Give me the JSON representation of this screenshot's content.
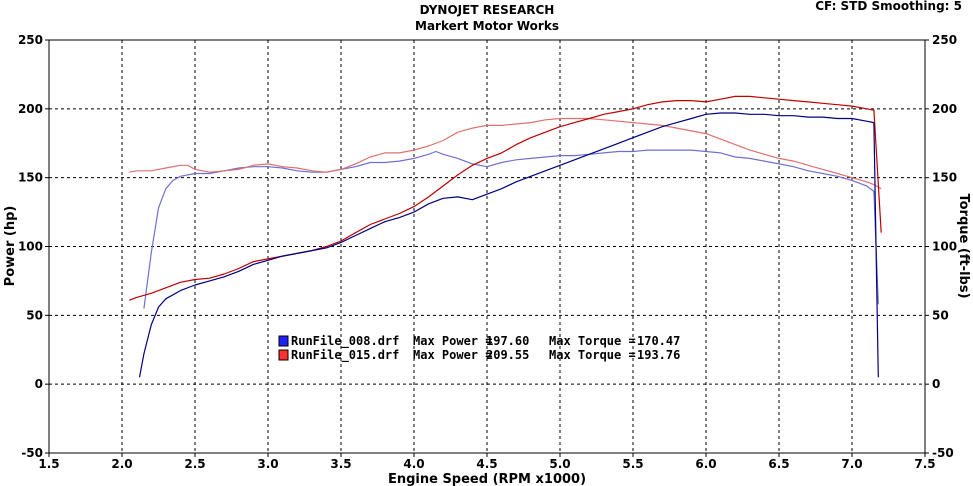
{
  "header": {
    "title": "DYNOJET RESEARCH",
    "subtitle": "Markert Motor Works",
    "settings": "CF: STD  Smoothing: 5"
  },
  "chart_data": {
    "type": "line",
    "xlabel": "Engine Speed (RPM x1000)",
    "ylabel_left": "Power (hp)",
    "ylabel_right": "Torque (ft-lbs)",
    "xlim": [
      1.5,
      7.5
    ],
    "ylim": [
      -50,
      250
    ],
    "x_ticks": [
      "1.5",
      "2.0",
      "2.5",
      "3.0",
      "3.5",
      "4.0",
      "4.5",
      "5.0",
      "5.5",
      "6.0",
      "6.5",
      "7.0",
      "7.5"
    ],
    "y_ticks_left": [
      "250",
      "200",
      "150",
      "100",
      "50",
      "0",
      "-50"
    ],
    "y_ticks_right": [
      "250",
      "200",
      "150",
      "100",
      "50",
      "0",
      "-50"
    ],
    "grid": true,
    "colors": {
      "run008": "#000080",
      "run015": "#c00000",
      "run008_tq": "#7070d0",
      "run015_tq": "#e07070"
    },
    "legend": {
      "placement": "center",
      "entries": [
        {
          "file": "RunFile_008.drf",
          "power_label": "Max Power =",
          "power": "197.60",
          "torque_label": "Max Torque =",
          "torque": "170.47",
          "color": "#2020ff"
        },
        {
          "file": "RunFile_015.drf",
          "power_label": "Max Power =",
          "power": "209.55",
          "torque_label": "Max Torque =",
          "torque": "193.76",
          "color": "#ff3030"
        }
      ]
    },
    "series": [
      {
        "key": "run008_power",
        "color": "#000080",
        "x": [
          2.12,
          2.15,
          2.2,
          2.25,
          2.3,
          2.4,
          2.5,
          2.6,
          2.7,
          2.8,
          2.9,
          3.0,
          3.1,
          3.2,
          3.3,
          3.4,
          3.5,
          3.6,
          3.7,
          3.8,
          3.9,
          4.0,
          4.1,
          4.2,
          4.3,
          4.4,
          4.5,
          4.6,
          4.7,
          4.8,
          4.9,
          5.0,
          5.1,
          5.2,
          5.3,
          5.4,
          5.5,
          5.6,
          5.7,
          5.8,
          5.9,
          6.0,
          6.1,
          6.2,
          6.3,
          6.4,
          6.5,
          6.6,
          6.7,
          6.8,
          6.9,
          7.0,
          7.1,
          7.15,
          7.18
        ],
        "y": [
          5,
          22,
          43,
          56,
          62,
          68,
          72,
          75,
          78,
          82,
          87,
          90,
          93,
          95,
          97,
          99,
          103,
          108,
          113,
          118,
          121,
          125,
          131,
          135,
          136,
          134,
          138,
          142,
          147,
          151,
          155,
          159,
          163,
          167,
          171,
          175,
          179,
          183,
          187,
          190,
          193,
          196,
          197,
          197,
          196,
          196,
          195,
          195,
          194,
          194,
          193,
          193,
          191,
          190,
          5
        ]
      },
      {
        "key": "run015_power",
        "color": "#c00000",
        "x": [
          2.05,
          2.1,
          2.2,
          2.3,
          2.4,
          2.5,
          2.6,
          2.7,
          2.8,
          2.9,
          3.0,
          3.1,
          3.2,
          3.3,
          3.4,
          3.5,
          3.6,
          3.7,
          3.8,
          3.9,
          4.0,
          4.1,
          4.2,
          4.3,
          4.4,
          4.5,
          4.6,
          4.7,
          4.8,
          4.9,
          5.0,
          5.1,
          5.2,
          5.3,
          5.4,
          5.5,
          5.6,
          5.7,
          5.8,
          5.9,
          6.0,
          6.1,
          6.2,
          6.3,
          6.4,
          6.5,
          6.6,
          6.7,
          6.8,
          6.9,
          7.0,
          7.1,
          7.15,
          7.2
        ],
        "y": [
          61,
          63,
          66,
          70,
          74,
          76,
          77,
          80,
          84,
          89,
          91,
          93,
          95,
          97,
          100,
          104,
          110,
          116,
          120,
          124,
          129,
          136,
          144,
          152,
          159,
          164,
          168,
          174,
          179,
          183,
          187,
          190,
          193,
          196,
          198,
          200,
          203,
          205,
          206,
          206,
          205,
          207,
          209,
          209,
          208,
          207,
          206,
          205,
          204,
          203,
          202,
          200,
          199,
          110
        ]
      },
      {
        "key": "run008_torque",
        "color": "#7070d0",
        "x": [
          2.15,
          2.2,
          2.25,
          2.3,
          2.35,
          2.4,
          2.5,
          2.6,
          2.7,
          2.8,
          2.9,
          3.0,
          3.1,
          3.2,
          3.3,
          3.4,
          3.5,
          3.6,
          3.7,
          3.8,
          3.9,
          4.0,
          4.1,
          4.15,
          4.2,
          4.3,
          4.4,
          4.5,
          4.6,
          4.7,
          4.8,
          4.9,
          5.0,
          5.1,
          5.2,
          5.3,
          5.4,
          5.5,
          5.6,
          5.7,
          5.8,
          5.9,
          6.0,
          6.1,
          6.2,
          6.3,
          6.4,
          6.5,
          6.6,
          6.7,
          6.8,
          6.9,
          7.0,
          7.1,
          7.15,
          7.18
        ],
        "y": [
          55,
          95,
          128,
          142,
          148,
          151,
          153,
          153,
          155,
          157,
          158,
          158,
          157,
          155,
          154,
          154,
          156,
          158,
          161,
          161,
          162,
          164,
          167,
          169,
          167,
          164,
          160,
          158,
          161,
          163,
          164,
          165,
          166,
          166,
          167,
          168,
          169,
          169,
          170,
          170,
          170,
          170,
          169,
          168,
          165,
          164,
          162,
          160,
          158,
          155,
          153,
          151,
          148,
          144,
          140,
          58
        ]
      },
      {
        "key": "run015_torque",
        "color": "#e07070",
        "x": [
          2.05,
          2.1,
          2.2,
          2.3,
          2.4,
          2.45,
          2.5,
          2.6,
          2.7,
          2.8,
          2.9,
          3.0,
          3.1,
          3.2,
          3.3,
          3.4,
          3.5,
          3.6,
          3.7,
          3.8,
          3.9,
          4.0,
          4.1,
          4.2,
          4.3,
          4.4,
          4.5,
          4.6,
          4.7,
          4.8,
          4.9,
          5.0,
          5.1,
          5.2,
          5.3,
          5.4,
          5.5,
          5.6,
          5.7,
          5.8,
          5.9,
          6.0,
          6.1,
          6.2,
          6.3,
          6.4,
          6.5,
          6.6,
          6.7,
          6.8,
          6.9,
          7.0,
          7.1,
          7.15,
          7.2
        ],
        "y": [
          154,
          155,
          155,
          157,
          159,
          159,
          156,
          154,
          155,
          156,
          159,
          160,
          158,
          157,
          155,
          154,
          156,
          160,
          165,
          168,
          168,
          170,
          173,
          177,
          183,
          186,
          188,
          188,
          189,
          190,
          192,
          193,
          193,
          193,
          192,
          191,
          190,
          189,
          188,
          186,
          184,
          182,
          178,
          174,
          170,
          167,
          164,
          162,
          159,
          156,
          153,
          150,
          147,
          145,
          142
        ]
      }
    ]
  }
}
